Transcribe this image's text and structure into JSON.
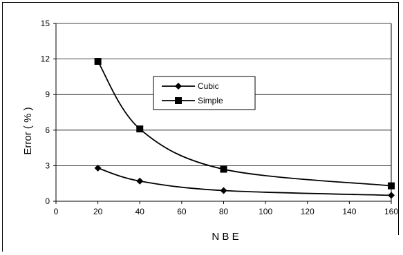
{
  "chart_data": {
    "type": "line",
    "title": "",
    "xlabel": "N B E",
    "ylabel": "Error ( % )",
    "xlim": [
      0,
      160
    ],
    "ylim": [
      0,
      15
    ],
    "xticks": [
      0,
      20,
      40,
      60,
      80,
      100,
      120,
      140,
      160
    ],
    "yticks": [
      0,
      3,
      6,
      9,
      12,
      15
    ],
    "x": [
      20,
      40,
      80,
      160
    ],
    "grid": "horizontal",
    "legend_position": "center",
    "series": [
      {
        "name": "Cubic",
        "marker": "diamond",
        "values": [
          2.8,
          1.7,
          0.9,
          0.5
        ]
      },
      {
        "name": "Simple",
        "marker": "square",
        "values": [
          11.8,
          6.1,
          2.7,
          1.3
        ]
      }
    ],
    "colors": {
      "line": "#000000",
      "grid": "#000000",
      "background": "#ffffff"
    }
  }
}
